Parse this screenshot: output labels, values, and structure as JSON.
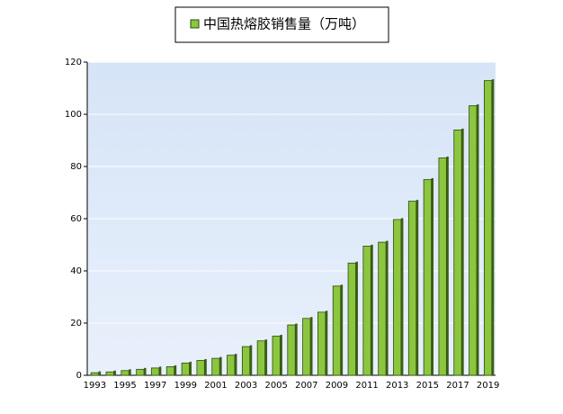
{
  "chart_data": {
    "type": "bar",
    "categories": [
      "1993",
      null,
      "1995",
      null,
      "1997",
      null,
      "1999",
      null,
      "2001",
      null,
      "2003",
      null,
      "2005",
      null,
      "2007",
      null,
      "2009",
      null,
      "2011",
      null,
      "2013",
      null,
      "2015",
      null,
      "2017",
      null,
      "2019"
    ],
    "series": [
      {
        "name": "中国热熔胶销售量（万吨）",
        "color": "#8cc63f",
        "values": [
          1.0,
          1.3,
          1.8,
          2.3,
          2.8,
          3.3,
          4.7,
          5.7,
          6.5,
          7.7,
          11.0,
          13.2,
          15.0,
          19.3,
          21.8,
          24.2,
          34.2,
          43.0,
          49.5,
          51.0,
          59.7,
          66.7,
          75.0,
          83.3,
          94.0,
          103.3,
          112.9
        ]
      }
    ],
    "ylim": [
      0,
      120
    ],
    "yticks": [
      0,
      20,
      40,
      60,
      80,
      100,
      120
    ],
    "grid": true,
    "legend": "top"
  }
}
